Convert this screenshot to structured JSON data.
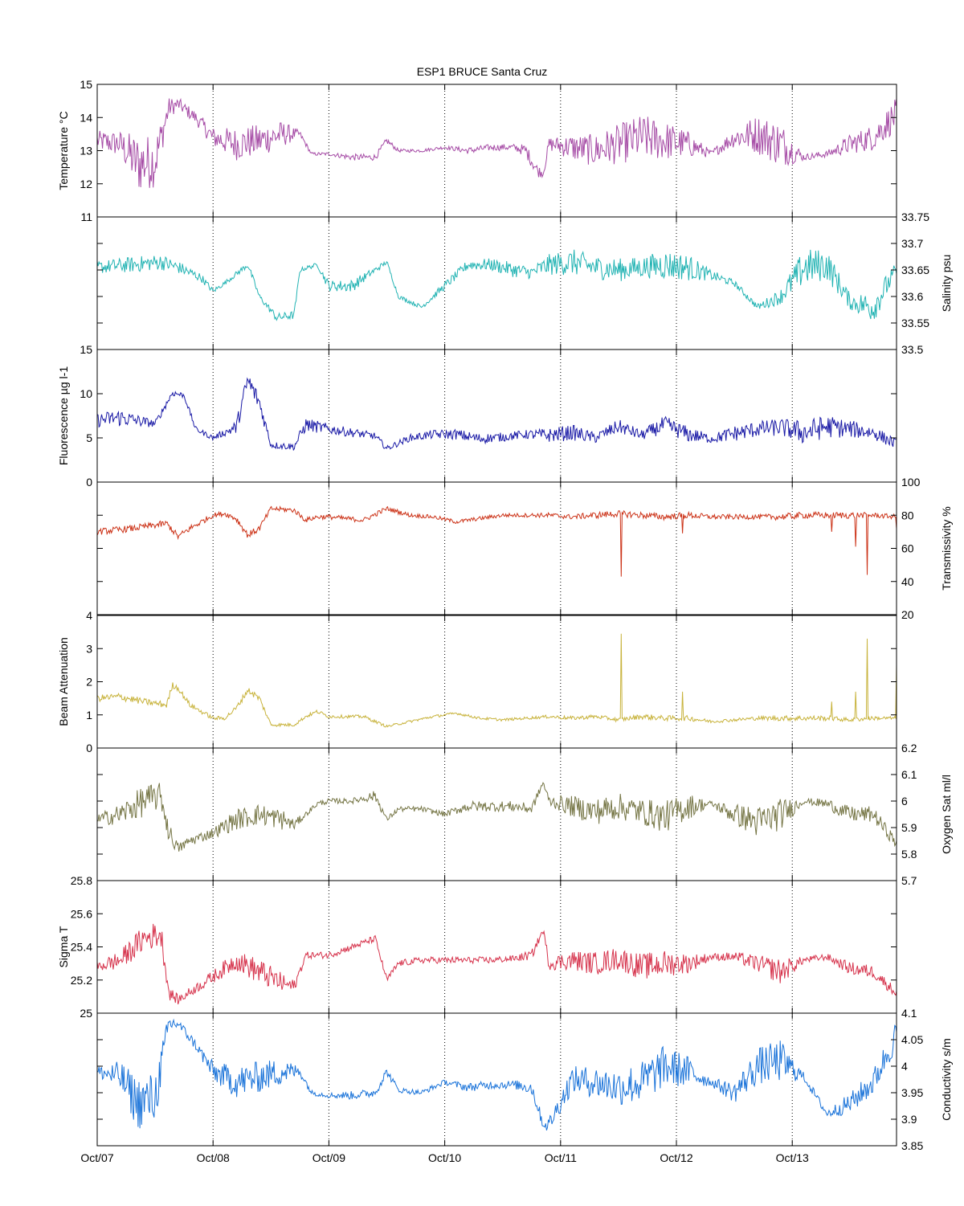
{
  "title": "ESP1 BRUCE Santa Cruz",
  "x_tick_labels": [
    "Oct/07",
    "Oct/08",
    "Oct/09",
    "Oct/10",
    "Oct/11",
    "Oct/12",
    "Oct/13"
  ],
  "chart_data": [
    {
      "type": "line",
      "ylabel": "Temperature °C",
      "axis_side": "left",
      "ylim": [
        11,
        15
      ],
      "yticks": [
        11,
        12,
        13,
        14,
        15
      ],
      "color": "#a64ca6",
      "x_unit": "days from Oct/07",
      "xlim": [
        0,
        6.9
      ],
      "x": [
        0,
        0.2,
        0.35,
        0.5,
        0.62,
        0.7,
        0.85,
        1.0,
        1.2,
        1.4,
        1.6,
        1.75,
        1.85,
        2.0,
        2.2,
        2.4,
        2.5,
        2.6,
        2.8,
        3.0,
        3.2,
        3.4,
        3.6,
        3.7,
        3.8,
        3.85,
        3.9,
        4.1,
        4.3,
        4.5,
        4.7,
        4.9,
        5.1,
        5.3,
        5.5,
        5.7,
        5.9,
        6.1,
        6.3,
        6.5,
        6.7,
        6.9
      ],
      "values": [
        13.3,
        13.2,
        12.6,
        12.7,
        14.3,
        14.4,
        14.0,
        13.4,
        13.2,
        13.3,
        13.5,
        13.5,
        12.9,
        12.9,
        12.8,
        12.8,
        13.3,
        13.0,
        13.0,
        13.1,
        13.0,
        13.1,
        13.1,
        13.0,
        12.4,
        12.3,
        13.2,
        13.1,
        13.0,
        13.2,
        13.4,
        13.3,
        13.2,
        12.9,
        13.4,
        13.5,
        13.2,
        12.8,
        12.9,
        13.2,
        13.4,
        14.1
      ],
      "noise": [
        0.3,
        0.4,
        0.9,
        0.8,
        0.3,
        0.2,
        0.2,
        0.3,
        0.5,
        0.5,
        0.4,
        0.1,
        0.05,
        0.05,
        0.1,
        0.1,
        0.1,
        0.05,
        0.05,
        0.05,
        0.1,
        0.1,
        0.1,
        0.2,
        0.2,
        0.1,
        0.2,
        0.4,
        0.5,
        0.6,
        0.7,
        0.6,
        0.4,
        0.1,
        0.3,
        0.6,
        0.7,
        0.1,
        0.1,
        0.3,
        0.4,
        0.5
      ]
    },
    {
      "type": "line",
      "ylabel": "Salinity psu",
      "axis_side": "right",
      "ylim": [
        33.5,
        33.75
      ],
      "yticks": [
        33.5,
        33.55,
        33.6,
        33.65,
        33.7,
        33.75
      ],
      "color": "#22b3b3",
      "x_unit": "days from Oct/07",
      "xlim": [
        0,
        6.9
      ],
      "x": [
        0,
        0.3,
        0.55,
        0.7,
        0.9,
        1.0,
        1.1,
        1.3,
        1.4,
        1.55,
        1.7,
        1.75,
        1.9,
        2.0,
        2.2,
        2.4,
        2.5,
        2.6,
        2.8,
        3.0,
        3.2,
        3.4,
        3.6,
        3.75,
        3.9,
        4.1,
        4.3,
        4.5,
        4.7,
        4.9,
        5.1,
        5.3,
        5.5,
        5.7,
        5.9,
        6.1,
        6.3,
        6.5,
        6.7,
        6.9
      ],
      "values": [
        33.655,
        33.66,
        33.665,
        33.655,
        33.635,
        33.61,
        33.625,
        33.66,
        33.6,
        33.56,
        33.565,
        33.65,
        33.66,
        33.62,
        33.62,
        33.65,
        33.665,
        33.6,
        33.58,
        33.62,
        33.66,
        33.66,
        33.65,
        33.645,
        33.66,
        33.665,
        33.655,
        33.65,
        33.655,
        33.66,
        33.655,
        33.64,
        33.625,
        33.58,
        33.6,
        33.655,
        33.66,
        33.59,
        33.58,
        33.65
      ],
      "noise": [
        0.012,
        0.015,
        0.015,
        0.012,
        0.008,
        0.005,
        0.004,
        0.006,
        0.005,
        0.008,
        0.008,
        0.004,
        0.004,
        0.01,
        0.012,
        0.006,
        0.004,
        0.004,
        0.004,
        0.008,
        0.01,
        0.012,
        0.014,
        0.012,
        0.02,
        0.025,
        0.022,
        0.022,
        0.02,
        0.028,
        0.025,
        0.01,
        0.006,
        0.006,
        0.015,
        0.035,
        0.03,
        0.015,
        0.03,
        0.015
      ]
    },
    {
      "type": "line",
      "ylabel": "Fluorescence µg l-1",
      "axis_side": "left",
      "ylim": [
        0,
        15
      ],
      "yticks": [
        0,
        5,
        10,
        15
      ],
      "color": "#1a1aa6",
      "x_unit": "days from Oct/07",
      "xlim": [
        0,
        6.9
      ],
      "x": [
        0,
        0.2,
        0.5,
        0.65,
        0.75,
        0.85,
        1.0,
        1.1,
        1.2,
        1.3,
        1.4,
        1.5,
        1.7,
        1.8,
        2.0,
        2.2,
        2.4,
        2.5,
        2.7,
        2.9,
        3.1,
        3.3,
        3.5,
        3.7,
        3.9,
        4.1,
        4.3,
        4.5,
        4.7,
        4.9,
        5.1,
        5.3,
        5.5,
        5.7,
        5.9,
        6.1,
        6.3,
        6.5,
        6.7,
        6.9
      ],
      "values": [
        7.0,
        7.3,
        6.6,
        10.1,
        9.8,
        6.0,
        5.0,
        5.6,
        6.2,
        11.5,
        9.0,
        4.2,
        4.0,
        6.5,
        6.0,
        5.6,
        5.2,
        3.8,
        5.0,
        5.4,
        5.4,
        4.9,
        5.1,
        5.4,
        5.3,
        5.6,
        5.0,
        6.3,
        5.3,
        6.5,
        5.4,
        4.9,
        5.5,
        6.0,
        6.2,
        5.6,
        6.3,
        6.0,
        5.6,
        4.3
      ],
      "noise": [
        0.8,
        1.0,
        0.4,
        0.4,
        0.3,
        0.3,
        0.3,
        0.4,
        0.8,
        1.2,
        1.0,
        0.4,
        0.4,
        0.8,
        0.6,
        0.5,
        0.4,
        0.3,
        0.4,
        0.5,
        0.6,
        0.6,
        0.5,
        0.5,
        0.8,
        0.9,
        0.6,
        0.8,
        0.6,
        1.0,
        0.9,
        0.5,
        0.9,
        0.9,
        1.0,
        1.4,
        1.3,
        1.0,
        0.8,
        0.6
      ]
    },
    {
      "type": "line",
      "ylabel": "Transmissivity %",
      "axis_side": "right",
      "ylim": [
        20,
        100
      ],
      "yticks": [
        20,
        40,
        60,
        80,
        100
      ],
      "color": "#cc3318",
      "x_unit": "days from Oct/07",
      "xlim": [
        0,
        6.9
      ],
      "x": [
        0,
        0.3,
        0.6,
        0.7,
        0.8,
        1.0,
        1.1,
        1.2,
        1.3,
        1.4,
        1.5,
        1.7,
        1.8,
        1.9,
        2.0,
        2.3,
        2.5,
        2.7,
        2.9,
        3.1,
        3.3,
        3.5,
        3.7,
        3.9,
        4.1,
        4.3,
        4.5,
        4.7,
        4.9,
        5.1,
        5.3,
        5.5,
        5.7,
        5.9,
        6.1,
        6.3,
        6.5,
        6.7,
        6.9
      ],
      "values": [
        70,
        72,
        75,
        67,
        72,
        80,
        81,
        78,
        68,
        72,
        84,
        83,
        77,
        79,
        79,
        77,
        84,
        80,
        79,
        76,
        78,
        80,
        80,
        80,
        79,
        80,
        81,
        80,
        79,
        80,
        79,
        79,
        79,
        79,
        80,
        80,
        80,
        80,
        79
      ],
      "noise": [
        2,
        2,
        2,
        2,
        2,
        1.5,
        1.5,
        2,
        2,
        2,
        1.5,
        1.5,
        1.5,
        1.5,
        1.5,
        1.5,
        1.5,
        1.2,
        1.2,
        1.2,
        1.2,
        1.2,
        1.2,
        1.5,
        1.5,
        2,
        2,
        2,
        2,
        2,
        1.5,
        1.5,
        1.5,
        2,
        2,
        2,
        2,
        1.5,
        1.5
      ],
      "spikes": [
        [
          4.52,
          43
        ],
        [
          5.05,
          69
        ],
        [
          6.34,
          70
        ],
        [
          6.55,
          61
        ],
        [
          6.65,
          44
        ],
        [
          6.9,
          72
        ]
      ]
    },
    {
      "type": "line",
      "ylabel": "Beam Attenuation",
      "axis_side": "left",
      "ylim": [
        0,
        4
      ],
      "yticks": [
        0,
        1,
        2,
        3,
        4
      ],
      "color": "#c8b33c",
      "x_unit": "days from Oct/07",
      "xlim": [
        0,
        6.9
      ],
      "x": [
        0,
        0.2,
        0.4,
        0.6,
        0.65,
        0.7,
        0.8,
        1.0,
        1.1,
        1.2,
        1.3,
        1.4,
        1.5,
        1.7,
        1.8,
        1.9,
        2.0,
        2.3,
        2.5,
        2.7,
        2.9,
        3.1,
        3.3,
        3.5,
        3.7,
        3.9,
        4.1,
        4.3,
        4.5,
        4.7,
        4.9,
        5.1,
        5.3,
        5.5,
        5.7,
        5.9,
        6.1,
        6.3,
        6.5,
        6.7,
        6.9
      ],
      "values": [
        1.5,
        1.55,
        1.4,
        1.3,
        1.9,
        1.8,
        1.3,
        0.9,
        0.9,
        1.2,
        1.75,
        1.5,
        0.7,
        0.7,
        0.95,
        1.1,
        0.95,
        0.95,
        0.65,
        0.8,
        0.95,
        1.05,
        0.9,
        0.85,
        0.9,
        0.95,
        0.9,
        0.95,
        0.85,
        0.95,
        0.9,
        0.9,
        0.8,
        0.85,
        0.9,
        0.9,
        0.9,
        0.9,
        0.85,
        0.9,
        0.9
      ],
      "noise": [
        0.1,
        0.12,
        0.1,
        0.1,
        0.1,
        0.08,
        0.08,
        0.06,
        0.06,
        0.08,
        0.1,
        0.1,
        0.05,
        0.05,
        0.05,
        0.06,
        0.05,
        0.05,
        0.04,
        0.04,
        0.04,
        0.04,
        0.04,
        0.04,
        0.04,
        0.05,
        0.06,
        0.06,
        0.06,
        0.08,
        0.08,
        0.08,
        0.05,
        0.05,
        0.06,
        0.08,
        0.08,
        0.08,
        0.06,
        0.06,
        0.05
      ],
      "spikes": [
        [
          4.52,
          3.45
        ],
        [
          5.05,
          1.7
        ],
        [
          6.34,
          1.4
        ],
        [
          6.55,
          1.7
        ],
        [
          6.65,
          3.3
        ],
        [
          6.9,
          2.5
        ]
      ]
    },
    {
      "type": "line",
      "ylabel": "Oxygen Sat ml/l",
      "axis_side": "right",
      "ylim": [
        5.7,
        6.2
      ],
      "yticks": [
        5.7,
        5.8,
        5.9,
        6.0,
        6.1,
        6.2
      ],
      "color": "#767646",
      "x_unit": "days from Oct/07",
      "xlim": [
        0,
        6.9
      ],
      "x": [
        0,
        0.2,
        0.4,
        0.55,
        0.62,
        0.7,
        0.8,
        1.0,
        1.2,
        1.4,
        1.6,
        1.7,
        1.8,
        1.9,
        2.0,
        2.2,
        2.4,
        2.5,
        2.6,
        2.8,
        3.0,
        3.2,
        3.4,
        3.6,
        3.75,
        3.85,
        3.9,
        4.1,
        4.3,
        4.5,
        4.7,
        4.9,
        5.1,
        5.3,
        5.5,
        5.7,
        5.9,
        6.1,
        6.3,
        6.5,
        6.7,
        6.9
      ],
      "values": [
        5.93,
        5.95,
        6.0,
        6.02,
        5.88,
        5.82,
        5.85,
        5.88,
        5.93,
        5.95,
        5.93,
        5.91,
        5.95,
        5.99,
        6.0,
        6.0,
        6.02,
        5.93,
        5.97,
        5.97,
        5.95,
        5.98,
        5.98,
        5.98,
        5.97,
        6.07,
        6.0,
        5.98,
        5.96,
        5.98,
        5.96,
        5.94,
        5.98,
        5.99,
        5.95,
        5.92,
        5.95,
        6.0,
        5.99,
        5.95,
        5.95,
        5.84
      ],
      "noise": [
        0.02,
        0.04,
        0.06,
        0.05,
        0.04,
        0.02,
        0.02,
        0.02,
        0.04,
        0.04,
        0.04,
        0.02,
        0.01,
        0.01,
        0.01,
        0.01,
        0.02,
        0.01,
        0.01,
        0.01,
        0.01,
        0.02,
        0.02,
        0.02,
        0.02,
        0.01,
        0.02,
        0.04,
        0.05,
        0.05,
        0.05,
        0.06,
        0.05,
        0.01,
        0.04,
        0.06,
        0.06,
        0.01,
        0.02,
        0.03,
        0.03,
        0.02
      ]
    },
    {
      "type": "line",
      "ylabel": "Sigma T",
      "axis_side": "left",
      "ylim": [
        25,
        25.8
      ],
      "yticks": [
        25,
        25.2,
        25.4,
        25.6,
        25.8
      ],
      "color": "#d6334c",
      "x_unit": "days from Oct/07",
      "xlim": [
        0,
        6.9
      ],
      "x": [
        0,
        0.2,
        0.4,
        0.55,
        0.62,
        0.7,
        0.85,
        1.0,
        1.2,
        1.4,
        1.6,
        1.7,
        1.8,
        2.0,
        2.2,
        2.4,
        2.5,
        2.6,
        2.8,
        3.0,
        3.2,
        3.4,
        3.6,
        3.75,
        3.85,
        3.9,
        4.1,
        4.3,
        4.5,
        4.7,
        4.9,
        5.1,
        5.3,
        5.5,
        5.7,
        5.9,
        6.1,
        6.3,
        6.5,
        6.7,
        6.9
      ],
      "values": [
        25.28,
        25.32,
        25.45,
        25.48,
        25.12,
        25.08,
        25.15,
        25.22,
        25.32,
        25.25,
        25.18,
        25.16,
        25.35,
        25.35,
        25.4,
        25.45,
        25.2,
        25.3,
        25.32,
        25.32,
        25.32,
        25.32,
        25.33,
        25.35,
        25.5,
        25.3,
        25.32,
        25.3,
        25.33,
        25.28,
        25.3,
        25.3,
        25.34,
        25.34,
        25.3,
        25.25,
        25.32,
        25.34,
        25.27,
        25.25,
        25.12
      ],
      "noise": [
        0.03,
        0.06,
        0.08,
        0.08,
        0.04,
        0.03,
        0.03,
        0.04,
        0.06,
        0.08,
        0.06,
        0.04,
        0.02,
        0.02,
        0.02,
        0.02,
        0.02,
        0.02,
        0.02,
        0.02,
        0.02,
        0.02,
        0.02,
        0.03,
        0.02,
        0.04,
        0.06,
        0.07,
        0.07,
        0.08,
        0.08,
        0.06,
        0.02,
        0.03,
        0.05,
        0.08,
        0.02,
        0.02,
        0.04,
        0.04,
        0.03
      ]
    },
    {
      "type": "line",
      "ylabel": "Conductivity s/m",
      "axis_side": "right",
      "ylim": [
        3.85,
        4.1
      ],
      "yticks": [
        3.85,
        3.9,
        3.95,
        4.0,
        4.05,
        4.1
      ],
      "color": "#1a73d9",
      "x_unit": "days from Oct/07",
      "xlim": [
        0,
        6.9
      ],
      "x": [
        0,
        0.2,
        0.35,
        0.5,
        0.62,
        0.7,
        0.85,
        1.0,
        1.2,
        1.4,
        1.6,
        1.75,
        1.85,
        2.0,
        2.2,
        2.4,
        2.5,
        2.6,
        2.8,
        3.0,
        3.2,
        3.4,
        3.6,
        3.75,
        3.85,
        3.9,
        4.1,
        4.3,
        4.5,
        4.7,
        4.9,
        5.1,
        5.3,
        5.5,
        5.7,
        5.9,
        6.1,
        6.3,
        6.5,
        6.7,
        6.9
      ],
      "values": [
        3.99,
        3.98,
        3.93,
        3.94,
        4.08,
        4.08,
        4.04,
        3.99,
        3.97,
        3.98,
        3.99,
        3.99,
        3.95,
        3.945,
        3.945,
        3.95,
        3.99,
        3.955,
        3.95,
        3.97,
        3.96,
        3.965,
        3.965,
        3.96,
        3.89,
        3.89,
        3.975,
        3.97,
        3.96,
        3.97,
        4.0,
        3.99,
        3.97,
        3.95,
        4.0,
        4.01,
        3.98,
        3.91,
        3.93,
        3.97,
        4.06
      ],
      "noise": [
        0.01,
        0.03,
        0.05,
        0.05,
        0.02,
        0.01,
        0.01,
        0.02,
        0.03,
        0.03,
        0.025,
        0.01,
        0.005,
        0.005,
        0.008,
        0.008,
        0.008,
        0.005,
        0.005,
        0.005,
        0.008,
        0.008,
        0.008,
        0.015,
        0.01,
        0.015,
        0.025,
        0.03,
        0.035,
        0.04,
        0.04,
        0.03,
        0.008,
        0.02,
        0.035,
        0.04,
        0.008,
        0.008,
        0.02,
        0.025,
        0.03
      ]
    }
  ]
}
